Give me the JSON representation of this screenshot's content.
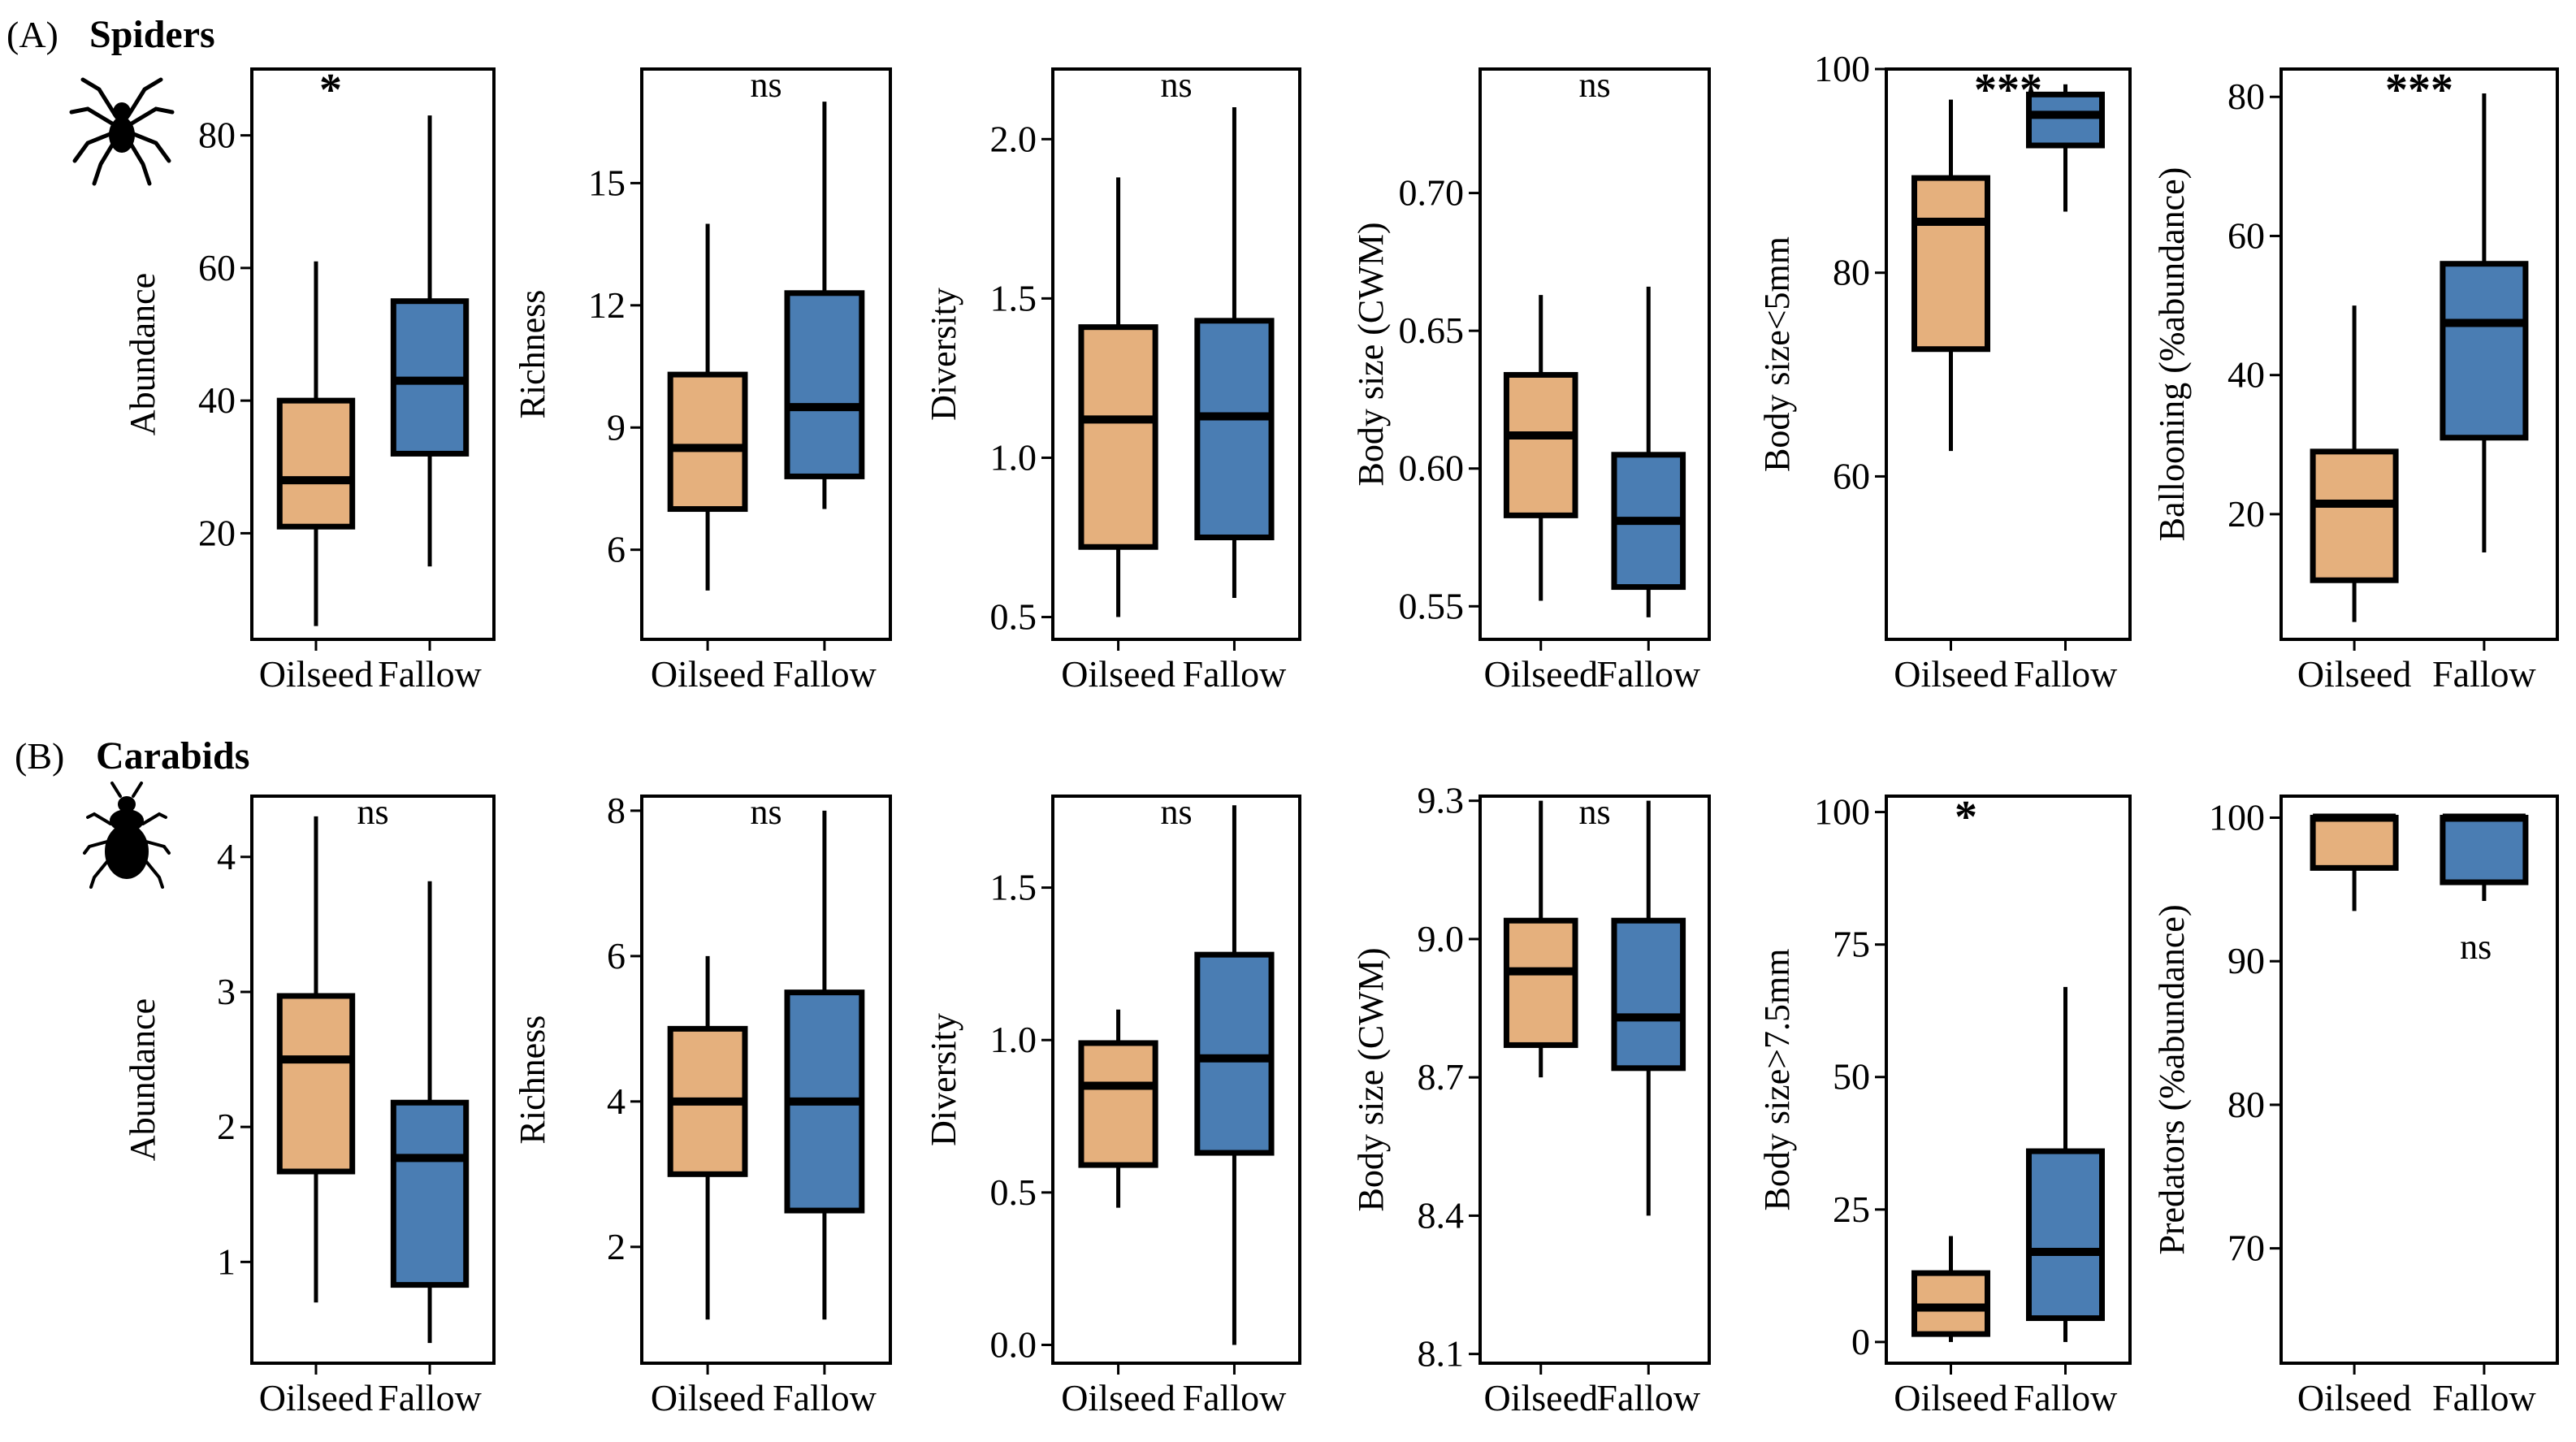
{
  "figure": {
    "colors": {
      "oilseed": "#e5b07d",
      "fallow": "#4a7db3",
      "stroke": "#000000"
    },
    "rows": [
      {
        "tag": "(A)",
        "title": "Spiders",
        "icon": "spider-icon"
      },
      {
        "tag": "(B)",
        "title": "Carabids",
        "icon": "beetle-icon"
      }
    ]
  },
  "chart_data": [
    {
      "type": "box",
      "row": 0,
      "ylabel": "Abundance",
      "ylim": [
        4,
        90
      ],
      "yticks": [
        20,
        40,
        60,
        80
      ],
      "categories": [
        "Oilseed",
        "Fallow"
      ],
      "significance": "*",
      "boxes": [
        {
          "min": 6,
          "q1": 21,
          "median": 28,
          "q3": 40,
          "max": 61
        },
        {
          "min": 15,
          "q1": 32,
          "median": 43,
          "q3": 55,
          "max": 83
        }
      ]
    },
    {
      "type": "box",
      "row": 0,
      "ylabel": "Richness",
      "ylim": [
        3.8,
        17.8
      ],
      "yticks": [
        6,
        9,
        12,
        15
      ],
      "categories": [
        "Oilseed",
        "Fallow"
      ],
      "significance": "ns",
      "boxes": [
        {
          "min": 5,
          "q1": 7,
          "median": 8.5,
          "q3": 10.3,
          "max": 14
        },
        {
          "min": 7,
          "q1": 7.8,
          "median": 9.5,
          "q3": 12.3,
          "max": 17
        }
      ]
    },
    {
      "type": "box",
      "row": 0,
      "ylabel": "Diversity",
      "ylim": [
        0.43,
        2.22
      ],
      "yticks": [
        0.5,
        1.0,
        1.5,
        2.0
      ],
      "ytickLabels": [
        "0.5",
        "1.0",
        "1.5",
        "2.0"
      ],
      "categories": [
        "Oilseed",
        "Fallow"
      ],
      "significance": "ns",
      "boxes": [
        {
          "min": 0.5,
          "q1": 0.72,
          "median": 1.12,
          "q3": 1.41,
          "max": 1.88
        },
        {
          "min": 0.56,
          "q1": 0.75,
          "median": 1.13,
          "q3": 1.43,
          "max": 2.1
        }
      ]
    },
    {
      "type": "box",
      "row": 0,
      "ylabel": "Body size (CWM)",
      "ylim": [
        0.538,
        0.745
      ],
      "yticks": [
        0.55,
        0.6,
        0.65,
        0.7
      ],
      "ytickLabels": [
        "0.55",
        "0.60",
        "0.65",
        "0.70"
      ],
      "categories": [
        "Oilseed",
        "Fallow"
      ],
      "significance": "ns",
      "boxes": [
        {
          "min": 0.552,
          "q1": 0.583,
          "median": 0.612,
          "q3": 0.634,
          "max": 0.663
        },
        {
          "min": 0.546,
          "q1": 0.557,
          "median": 0.581,
          "q3": 0.605,
          "max": 0.666
        }
      ]
    },
    {
      "type": "box",
      "row": 0,
      "ylabel": "Body size<5mm",
      "ylim": [
        44,
        100
      ],
      "yticks": [
        60,
        80,
        100
      ],
      "categories": [
        "Oilseed",
        "Fallow"
      ],
      "significance": "***",
      "boxes": [
        {
          "min": 62.5,
          "q1": 72.5,
          "median": 85,
          "q3": 89.3,
          "max": 97
        },
        {
          "min": 86,
          "q1": 92.5,
          "median": 95.5,
          "q3": 97.5,
          "max": 98.5
        }
      ]
    },
    {
      "type": "box",
      "row": 0,
      "ylabel": "Ballooning  (%abundance)",
      "ylim": [
        2,
        84
      ],
      "yticks": [
        20,
        40,
        60,
        80
      ],
      "categories": [
        "Oilseed",
        "Fallow"
      ],
      "significance": "***",
      "boxes": [
        {
          "min": 4.5,
          "q1": 10.5,
          "median": 21.5,
          "q3": 29,
          "max": 50
        },
        {
          "min": 14.5,
          "q1": 31,
          "median": 47.5,
          "q3": 56,
          "max": 80.5
        }
      ]
    },
    {
      "type": "box",
      "row": 1,
      "ylabel": "Abundance",
      "ylim": [
        0.25,
        4.45
      ],
      "yticks": [
        1,
        2,
        3,
        4
      ],
      "categories": [
        "Oilseed",
        "Fallow"
      ],
      "significance": "ns",
      "boxes": [
        {
          "min": 0.7,
          "q1": 1.67,
          "median": 2.5,
          "q3": 2.97,
          "max": 4.3
        },
        {
          "min": 0.4,
          "q1": 0.83,
          "median": 1.77,
          "q3": 2.18,
          "max": 3.82
        }
      ]
    },
    {
      "type": "box",
      "row": 1,
      "ylabel": "Richness",
      "ylim": [
        0.4,
        8.2
      ],
      "yticks": [
        2,
        4,
        6,
        8
      ],
      "categories": [
        "Oilseed",
        "Fallow"
      ],
      "significance": "ns",
      "boxes": [
        {
          "min": 1,
          "q1": 3,
          "median": 4,
          "q3": 5,
          "max": 6
        },
        {
          "min": 1,
          "q1": 2.5,
          "median": 4,
          "q3": 5.5,
          "max": 8
        }
      ]
    },
    {
      "type": "box",
      "row": 1,
      "ylabel": "Diversity",
      "ylim": [
        -0.06,
        1.8
      ],
      "yticks": [
        0.0,
        0.5,
        1.0,
        1.5
      ],
      "ytickLabels": [
        "0.0",
        "0.5",
        "1.0",
        "1.5"
      ],
      "categories": [
        "Oilseed",
        "Fallow"
      ],
      "significance": "ns",
      "boxes": [
        {
          "min": 0.45,
          "q1": 0.59,
          "median": 0.85,
          "q3": 0.99,
          "max": 1.1
        },
        {
          "min": 0.0,
          "q1": 0.63,
          "median": 0.94,
          "q3": 1.28,
          "max": 1.77
        }
      ]
    },
    {
      "type": "box",
      "row": 1,
      "ylabel": "Body size (CWM)",
      "ylim": [
        8.08,
        9.31
      ],
      "yticks": [
        8.1,
        8.4,
        8.7,
        9.0,
        9.3
      ],
      "ytickLabels": [
        "8.1",
        "8.4",
        "8.7",
        "9.0",
        "9.3"
      ],
      "categories": [
        "Oilseed",
        "Fallow"
      ],
      "significance": "ns",
      "boxes": [
        {
          "min": 8.7,
          "q1": 8.77,
          "median": 8.93,
          "q3": 9.04,
          "max": 9.3
        },
        {
          "min": 8.4,
          "q1": 8.72,
          "median": 8.83,
          "q3": 9.04,
          "max": 9.3
        }
      ]
    },
    {
      "type": "box",
      "row": 1,
      "ylabel": "Body size>7.5mm",
      "ylim": [
        -4,
        103
      ],
      "yticks": [
        0,
        25,
        50,
        75,
        100
      ],
      "categories": [
        "Oilseed",
        "Fallow"
      ],
      "significance": "*",
      "boxes": [
        {
          "min": 0,
          "q1": 1.5,
          "median": 6.5,
          "q3": 13,
          "max": 20
        },
        {
          "min": 0,
          "q1": 4.5,
          "median": 17,
          "q3": 36,
          "max": 67
        }
      ]
    },
    {
      "type": "box",
      "row": 1,
      "ylabel": "Predators (%abundance)",
      "ylim": [
        62,
        101.5
      ],
      "yticks": [
        70,
        80,
        90,
        100
      ],
      "categories": [
        "Oilseed",
        "Fallow"
      ],
      "significance": "ns",
      "significancePosition": "below",
      "boxes": [
        {
          "min": 93.5,
          "q1": 96.5,
          "median": 100,
          "q3": 100,
          "max": 100
        },
        {
          "min": 94.2,
          "q1": 95.5,
          "median": 100,
          "q3": 100,
          "max": 100
        }
      ]
    }
  ]
}
